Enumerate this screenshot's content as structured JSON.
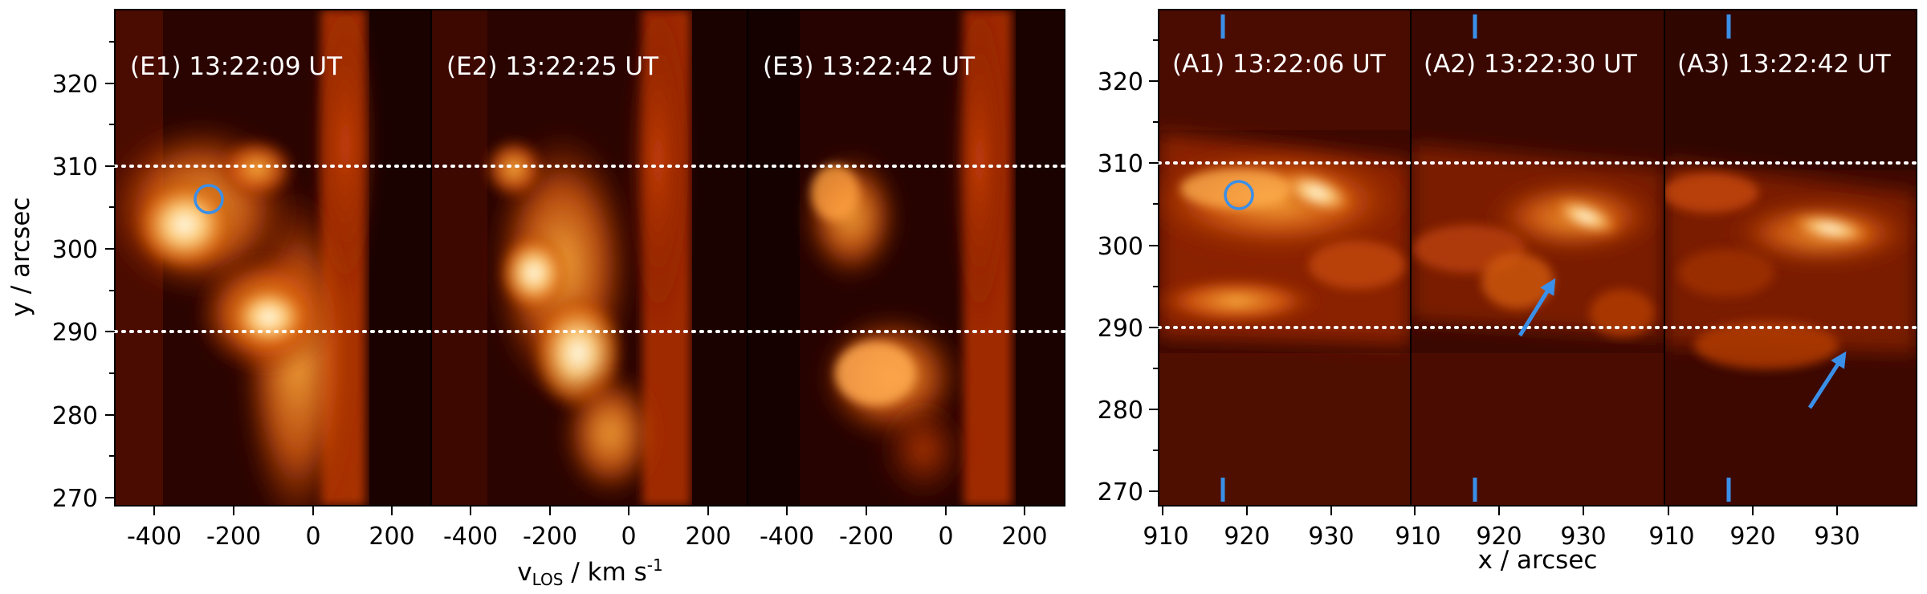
{
  "figure": {
    "left_group": {
      "ylabel": "y / arcsec",
      "xlabel_main": "v",
      "xlabel_sub": "LOS",
      "xlabel_rest": " / km s",
      "xlabel_sup": "-1",
      "panels": [
        {
          "label": "(E1) 13:22:09 UT"
        },
        {
          "label": "(E2) 13:22:25 UT"
        },
        {
          "label": "(E3) 13:22:42 UT"
        }
      ],
      "x_ticks": [
        "-400",
        "-200",
        "0",
        "200"
      ],
      "y_ticks": [
        "270",
        "280",
        "290",
        "300",
        "310",
        "320"
      ]
    },
    "right_group": {
      "xlabel": "x / arcsec",
      "panels": [
        {
          "label": "(A1) 13:22:06 UT"
        },
        {
          "label": "(A2) 13:22:30 UT"
        },
        {
          "label": "(A3) 13:22:42 UT"
        }
      ],
      "x_ticks": [
        "910",
        "920",
        "930"
      ],
      "y_ticks": [
        "270",
        "280",
        "290",
        "300",
        "310",
        "320"
      ]
    },
    "colors": {
      "marker": "#3a8fe8",
      "dotted_line": "#ffffff",
      "colormap": "hot"
    }
  },
  "chart_data": [
    {
      "type": "heatmap",
      "title": "(E1) 13:22:09 UT",
      "xlabel": "vLOS / km s-1",
      "ylabel": "y / arcsec",
      "xlim": [
        -500,
        300
      ],
      "ylim": [
        269,
        329
      ],
      "xticks": [
        -400,
        -200,
        0,
        200
      ],
      "yticks": [
        270,
        280,
        290,
        300,
        310,
        320
      ],
      "reference_lines_y": [
        290,
        310
      ],
      "markers": [
        {
          "shape": "circle",
          "x": -270,
          "y": 306
        }
      ]
    },
    {
      "type": "heatmap",
      "title": "(E2) 13:22:25 UT",
      "xlim": [
        -500,
        300
      ],
      "ylim": [
        269,
        329
      ],
      "xticks": [
        -400,
        -200,
        0,
        200
      ],
      "reference_lines_y": [
        290,
        310
      ]
    },
    {
      "type": "heatmap",
      "title": "(E3) 13:22:42 UT",
      "xlim": [
        -500,
        300
      ],
      "ylim": [
        269,
        329
      ],
      "xticks": [
        -400,
        -200,
        0,
        200
      ],
      "reference_lines_y": [
        290,
        310
      ]
    },
    {
      "type": "heatmap",
      "title": "(A1) 13:22:06 UT",
      "xlabel": "x / arcsec",
      "xlim": [
        909.5,
        939.5
      ],
      "ylim": [
        269,
        329
      ],
      "xticks": [
        910,
        920,
        930
      ],
      "yticks": [
        270,
        280,
        290,
        300,
        310,
        320
      ],
      "reference_lines_y": [
        290,
        310
      ],
      "slit_x": 917,
      "markers": [
        {
          "shape": "circle",
          "x": 919,
          "y": 306
        }
      ]
    },
    {
      "type": "heatmap",
      "title": "(A2) 13:22:30 UT",
      "xlim": [
        909.5,
        939.5
      ],
      "ylim": [
        269,
        329
      ],
      "xticks": [
        910,
        920,
        930
      ],
      "reference_lines_y": [
        290,
        310
      ],
      "slit_x": 917,
      "markers": [
        {
          "shape": "arrow",
          "from": [
            921.5,
            289
          ],
          "to": [
            925.5,
            295.5
          ]
        }
      ]
    },
    {
      "type": "heatmap",
      "title": "(A3) 13:22:42 UT",
      "xlim": [
        909.5,
        939.5
      ],
      "ylim": [
        269,
        329
      ],
      "xticks": [
        910,
        920,
        930
      ],
      "reference_lines_y": [
        290,
        310
      ],
      "slit_x": 917,
      "markers": [
        {
          "shape": "arrow",
          "from": [
            926.5,
            280
          ],
          "to": [
            930.5,
            286.5
          ]
        }
      ]
    }
  ]
}
